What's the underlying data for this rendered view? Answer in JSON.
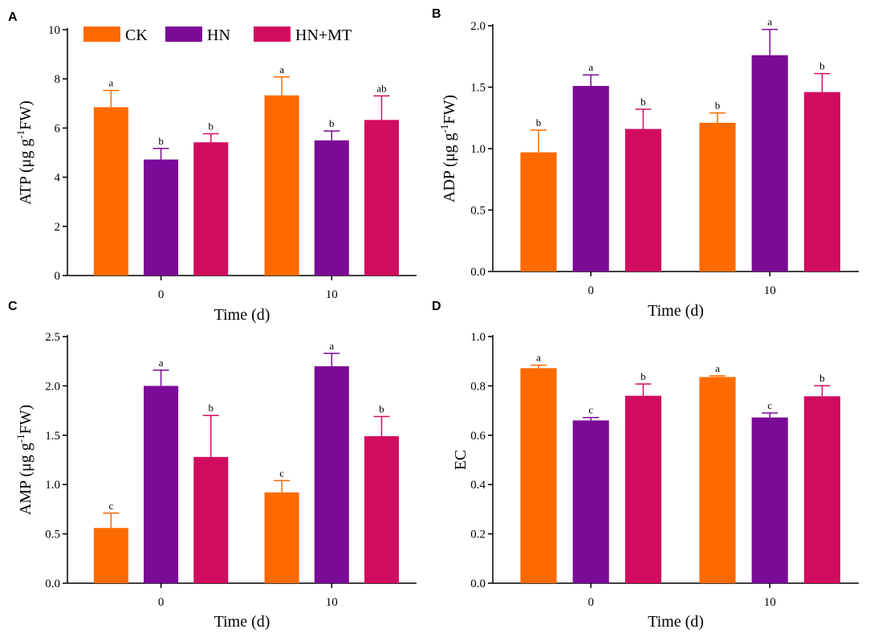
{
  "colors": {
    "CK": "#FF6A00",
    "HN": "#7B0A96",
    "HN+MT": "#D10C60"
  },
  "legend": [
    "CK",
    "HN",
    "HN+MT"
  ],
  "chart_data": [
    {
      "panel": "A",
      "type": "bar",
      "categories": [
        "0",
        "10"
      ],
      "series": [
        {
          "name": "CK",
          "values": [
            6.85,
            7.33
          ],
          "errors": [
            0.68,
            0.75
          ],
          "letters": [
            "a",
            "a"
          ]
        },
        {
          "name": "HN",
          "values": [
            4.72,
            5.5
          ],
          "errors": [
            0.45,
            0.38
          ],
          "letters": [
            "b",
            "b"
          ]
        },
        {
          "name": "HN+MT",
          "values": [
            5.42,
            6.33
          ],
          "errors": [
            0.35,
            0.98
          ],
          "letters": [
            "b",
            "ab"
          ]
        }
      ],
      "ylim": [
        0,
        10
      ],
      "yticks": [
        "0",
        "2",
        "4",
        "6",
        "8",
        "10"
      ],
      "ylabel_main": "ATP (μg g",
      "ylabel_sup": "-1",
      "ylabel_end": "FW)",
      "xlabel": "Time (d)",
      "legend": true
    },
    {
      "panel": "B",
      "type": "bar",
      "categories": [
        "0",
        "10"
      ],
      "series": [
        {
          "name": "CK",
          "values": [
            0.97,
            1.21
          ],
          "errors": [
            0.18,
            0.08
          ],
          "letters": [
            "b",
            "b"
          ]
        },
        {
          "name": "HN",
          "values": [
            1.51,
            1.76
          ],
          "errors": [
            0.09,
            0.21
          ],
          "letters": [
            "a",
            "a"
          ]
        },
        {
          "name": "HN+MT",
          "values": [
            1.16,
            1.46
          ],
          "errors": [
            0.16,
            0.15
          ],
          "letters": [
            "b",
            "b"
          ]
        }
      ],
      "ylim": [
        0,
        2
      ],
      "yticks": [
        "0.0",
        "0.5",
        "1.0",
        "1.5",
        "2.0"
      ],
      "ylabel_main": "ADP (μg g",
      "ylabel_sup": "-1",
      "ylabel_end": "FW)",
      "xlabel": "Time (d)",
      "legend": false
    },
    {
      "panel": "C",
      "type": "bar",
      "categories": [
        "0",
        "10"
      ],
      "series": [
        {
          "name": "CK",
          "values": [
            0.56,
            0.92
          ],
          "errors": [
            0.15,
            0.12
          ],
          "letters": [
            "c",
            "c"
          ]
        },
        {
          "name": "HN",
          "values": [
            2.0,
            2.2
          ],
          "errors": [
            0.16,
            0.13
          ],
          "letters": [
            "a",
            "a"
          ]
        },
        {
          "name": "HN+MT",
          "values": [
            1.28,
            1.49
          ],
          "errors": [
            0.42,
            0.2
          ],
          "letters": [
            "b",
            "b"
          ]
        }
      ],
      "ylim": [
        0,
        2.5
      ],
      "yticks": [
        "0.0",
        "0.5",
        "1.0",
        "1.5",
        "2.0",
        "2.5"
      ],
      "ylabel_main": "AMP (μg g",
      "ylabel_sup": "-1",
      "ylabel_end": "FW)",
      "xlabel": "Time (d)",
      "legend": false
    },
    {
      "panel": "D",
      "type": "bar",
      "categories": [
        "0",
        "10"
      ],
      "series": [
        {
          "name": "CK",
          "values": [
            0.872,
            0.836
          ],
          "errors": [
            0.012,
            0.005
          ],
          "letters": [
            "a",
            "a"
          ]
        },
        {
          "name": "HN",
          "values": [
            0.66,
            0.672
          ],
          "errors": [
            0.012,
            0.018
          ],
          "letters": [
            "c",
            "c"
          ]
        },
        {
          "name": "HN+MT",
          "values": [
            0.76,
            0.758
          ],
          "errors": [
            0.048,
            0.043
          ],
          "letters": [
            "b",
            "b"
          ]
        }
      ],
      "ylim": [
        0,
        1
      ],
      "yticks": [
        "0.0",
        "0.2",
        "0.4",
        "0.6",
        "0.8",
        "1.0"
      ],
      "ylabel_main": "EC",
      "ylabel_sup": "",
      "ylabel_end": "",
      "xlabel": "Time (d)",
      "legend": false
    }
  ]
}
